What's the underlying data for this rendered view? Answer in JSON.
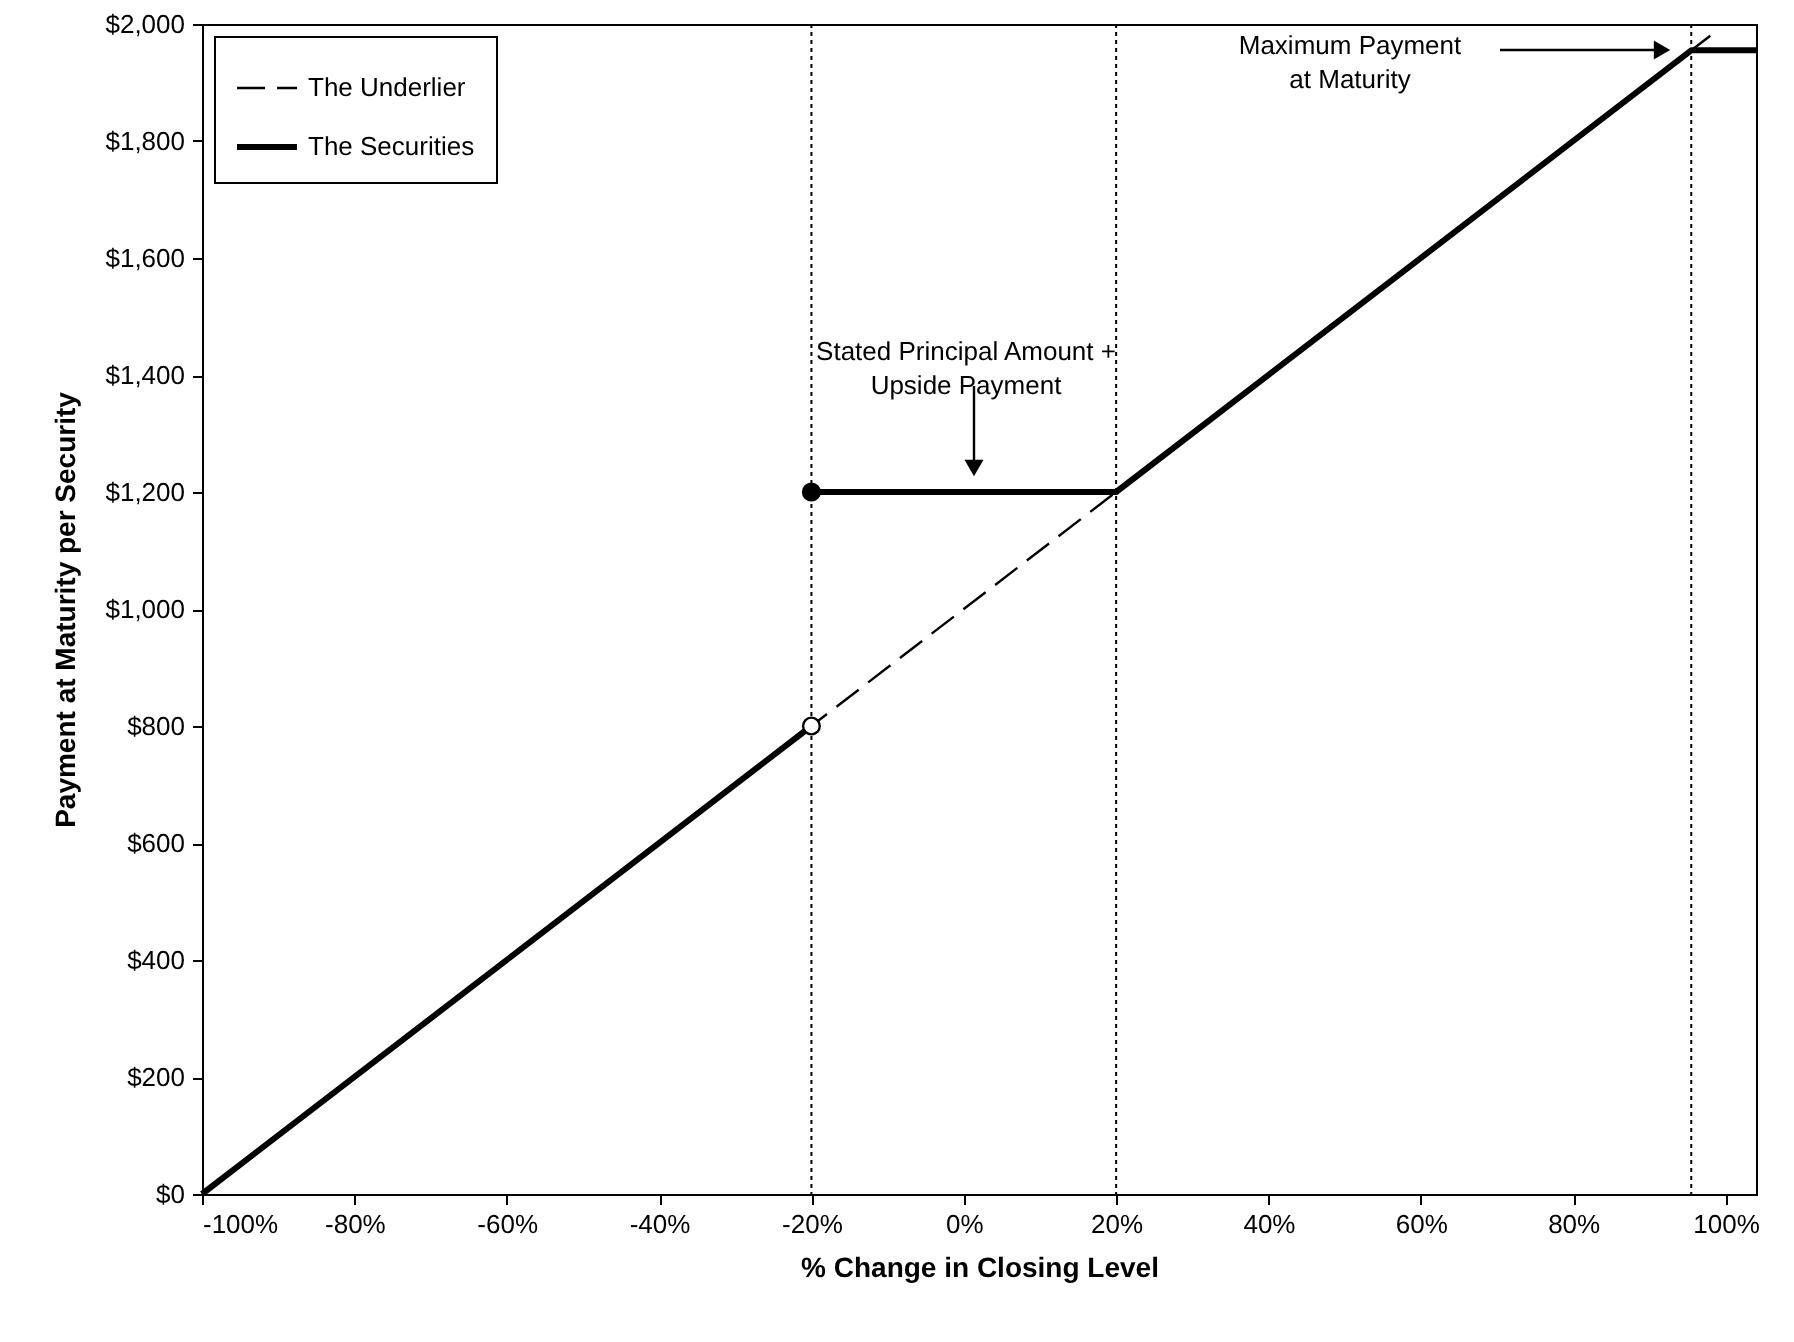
{
  "chart_data": {
    "type": "line",
    "xlabel": "% Change in Closing Level",
    "ylabel": "Payment at Maturity per Security",
    "xlim": [
      -100,
      104
    ],
    "ylim": [
      0,
      2000
    ],
    "xticks": [
      {
        "value": -100,
        "label": "-100%"
      },
      {
        "value": -80,
        "label": "-80%"
      },
      {
        "value": -60,
        "label": "-60%"
      },
      {
        "value": -40,
        "label": "-40%"
      },
      {
        "value": -20,
        "label": "-20%"
      },
      {
        "value": 0,
        "label": "0%"
      },
      {
        "value": 20,
        "label": "20%"
      },
      {
        "value": 40,
        "label": "40%"
      },
      {
        "value": 60,
        "label": "60%"
      },
      {
        "value": 80,
        "label": "80%"
      },
      {
        "value": 100,
        "label": "100%"
      }
    ],
    "yticks": [
      {
        "value": 0,
        "label": "$0"
      },
      {
        "value": 200,
        "label": "$200"
      },
      {
        "value": 400,
        "label": "$400"
      },
      {
        "value": 600,
        "label": "$600"
      },
      {
        "value": 800,
        "label": "$800"
      },
      {
        "value": 1000,
        "label": "$1,000"
      },
      {
        "value": 1200,
        "label": "$1,200"
      },
      {
        "value": 1400,
        "label": "$1,400"
      },
      {
        "value": 1600,
        "label": "$1,600"
      },
      {
        "value": 1800,
        "label": "$1,800"
      },
      {
        "value": 2000,
        "label": "$2,000"
      }
    ],
    "grid": false,
    "legend": "top left",
    "series": [
      {
        "name": "The Underlier",
        "line_style": "dashed",
        "color": "#000000",
        "x": [
          -100,
          98
        ],
        "values": [
          0,
          1980
        ]
      },
      {
        "name": "The Securities",
        "line_style": "solid",
        "color": "#000000",
        "x": [
          -100,
          -20,
          null,
          -20,
          20,
          95.5,
          104
        ],
        "values": [
          0,
          800,
          null,
          1200,
          1200,
          1955,
          1955
        ]
      },
      {
        "type": "scatter",
        "marker": "circle",
        "color": "#000000",
        "x": [
          -20
        ],
        "values": [
          1200
        ]
      },
      {
        "type": "scatter",
        "marker": "circle",
        "color": "#ffffff",
        "x": [
          -20
        ],
        "values": [
          800
        ]
      }
    ],
    "ref_lines": [
      {
        "axis": "x",
        "value": -20,
        "color": "#000000",
        "line_style": "dotted"
      },
      {
        "axis": "x",
        "value": 20,
        "color": "#000000",
        "line_style": "dotted"
      },
      {
        "axis": "x",
        "value": 95.5,
        "color": "#000000",
        "line_style": "dotted"
      }
    ],
    "annotations": [
      "Stated Principal Amount +\nUpside Payment",
      "Maximum Payment\nat Maturity"
    ]
  }
}
